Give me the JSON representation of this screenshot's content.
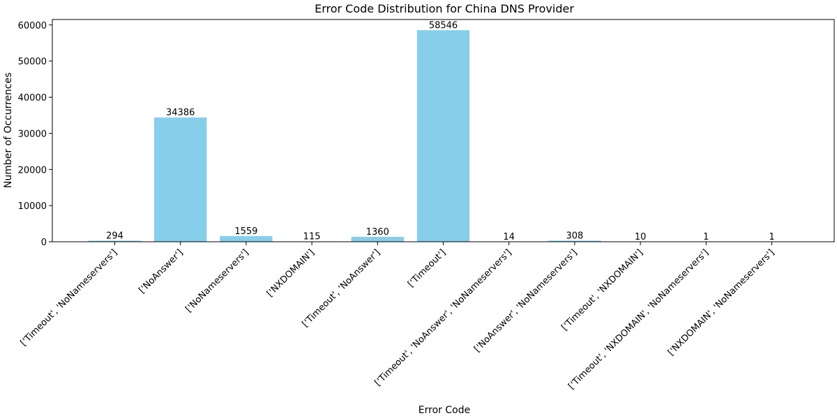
{
  "chart_data": {
    "type": "bar",
    "title": "Error Code Distribution for China DNS Provider",
    "xlabel": "Error Code",
    "ylabel": "Number of Occurrences",
    "categories": [
      "['Timeout', 'NoNameservers']",
      "['NoAnswer']",
      "['NoNameservers']",
      "['NXDOMAIN']",
      "['Timeout', 'NoAnswer']",
      "['Timeout']",
      "['Timeout', 'NoAnswer', 'NoNameservers']",
      "['NoAnswer', 'NoNameservers']",
      "['Timeout', 'NXDOMAIN']",
      "['Timeout', 'NXDOMAIN', 'NoNameservers']",
      "['NXDOMAIN', 'NoNameservers']"
    ],
    "values": [
      294,
      34386,
      1559,
      115,
      1360,
      58546,
      14,
      308,
      10,
      1,
      1
    ],
    "value_labels": [
      "294",
      "34386",
      "1559",
      "115",
      "1360",
      "58546",
      "14",
      "308",
      "10",
      "1",
      "1"
    ],
    "ylim": [
      0,
      61500
    ],
    "yticks": [
      0,
      10000,
      20000,
      30000,
      40000,
      50000,
      60000
    ],
    "ytick_labels": [
      "0",
      "10000",
      "20000",
      "30000",
      "40000",
      "50000",
      "60000"
    ],
    "grid": false,
    "colors": {
      "bar": "#87CEEB"
    }
  }
}
